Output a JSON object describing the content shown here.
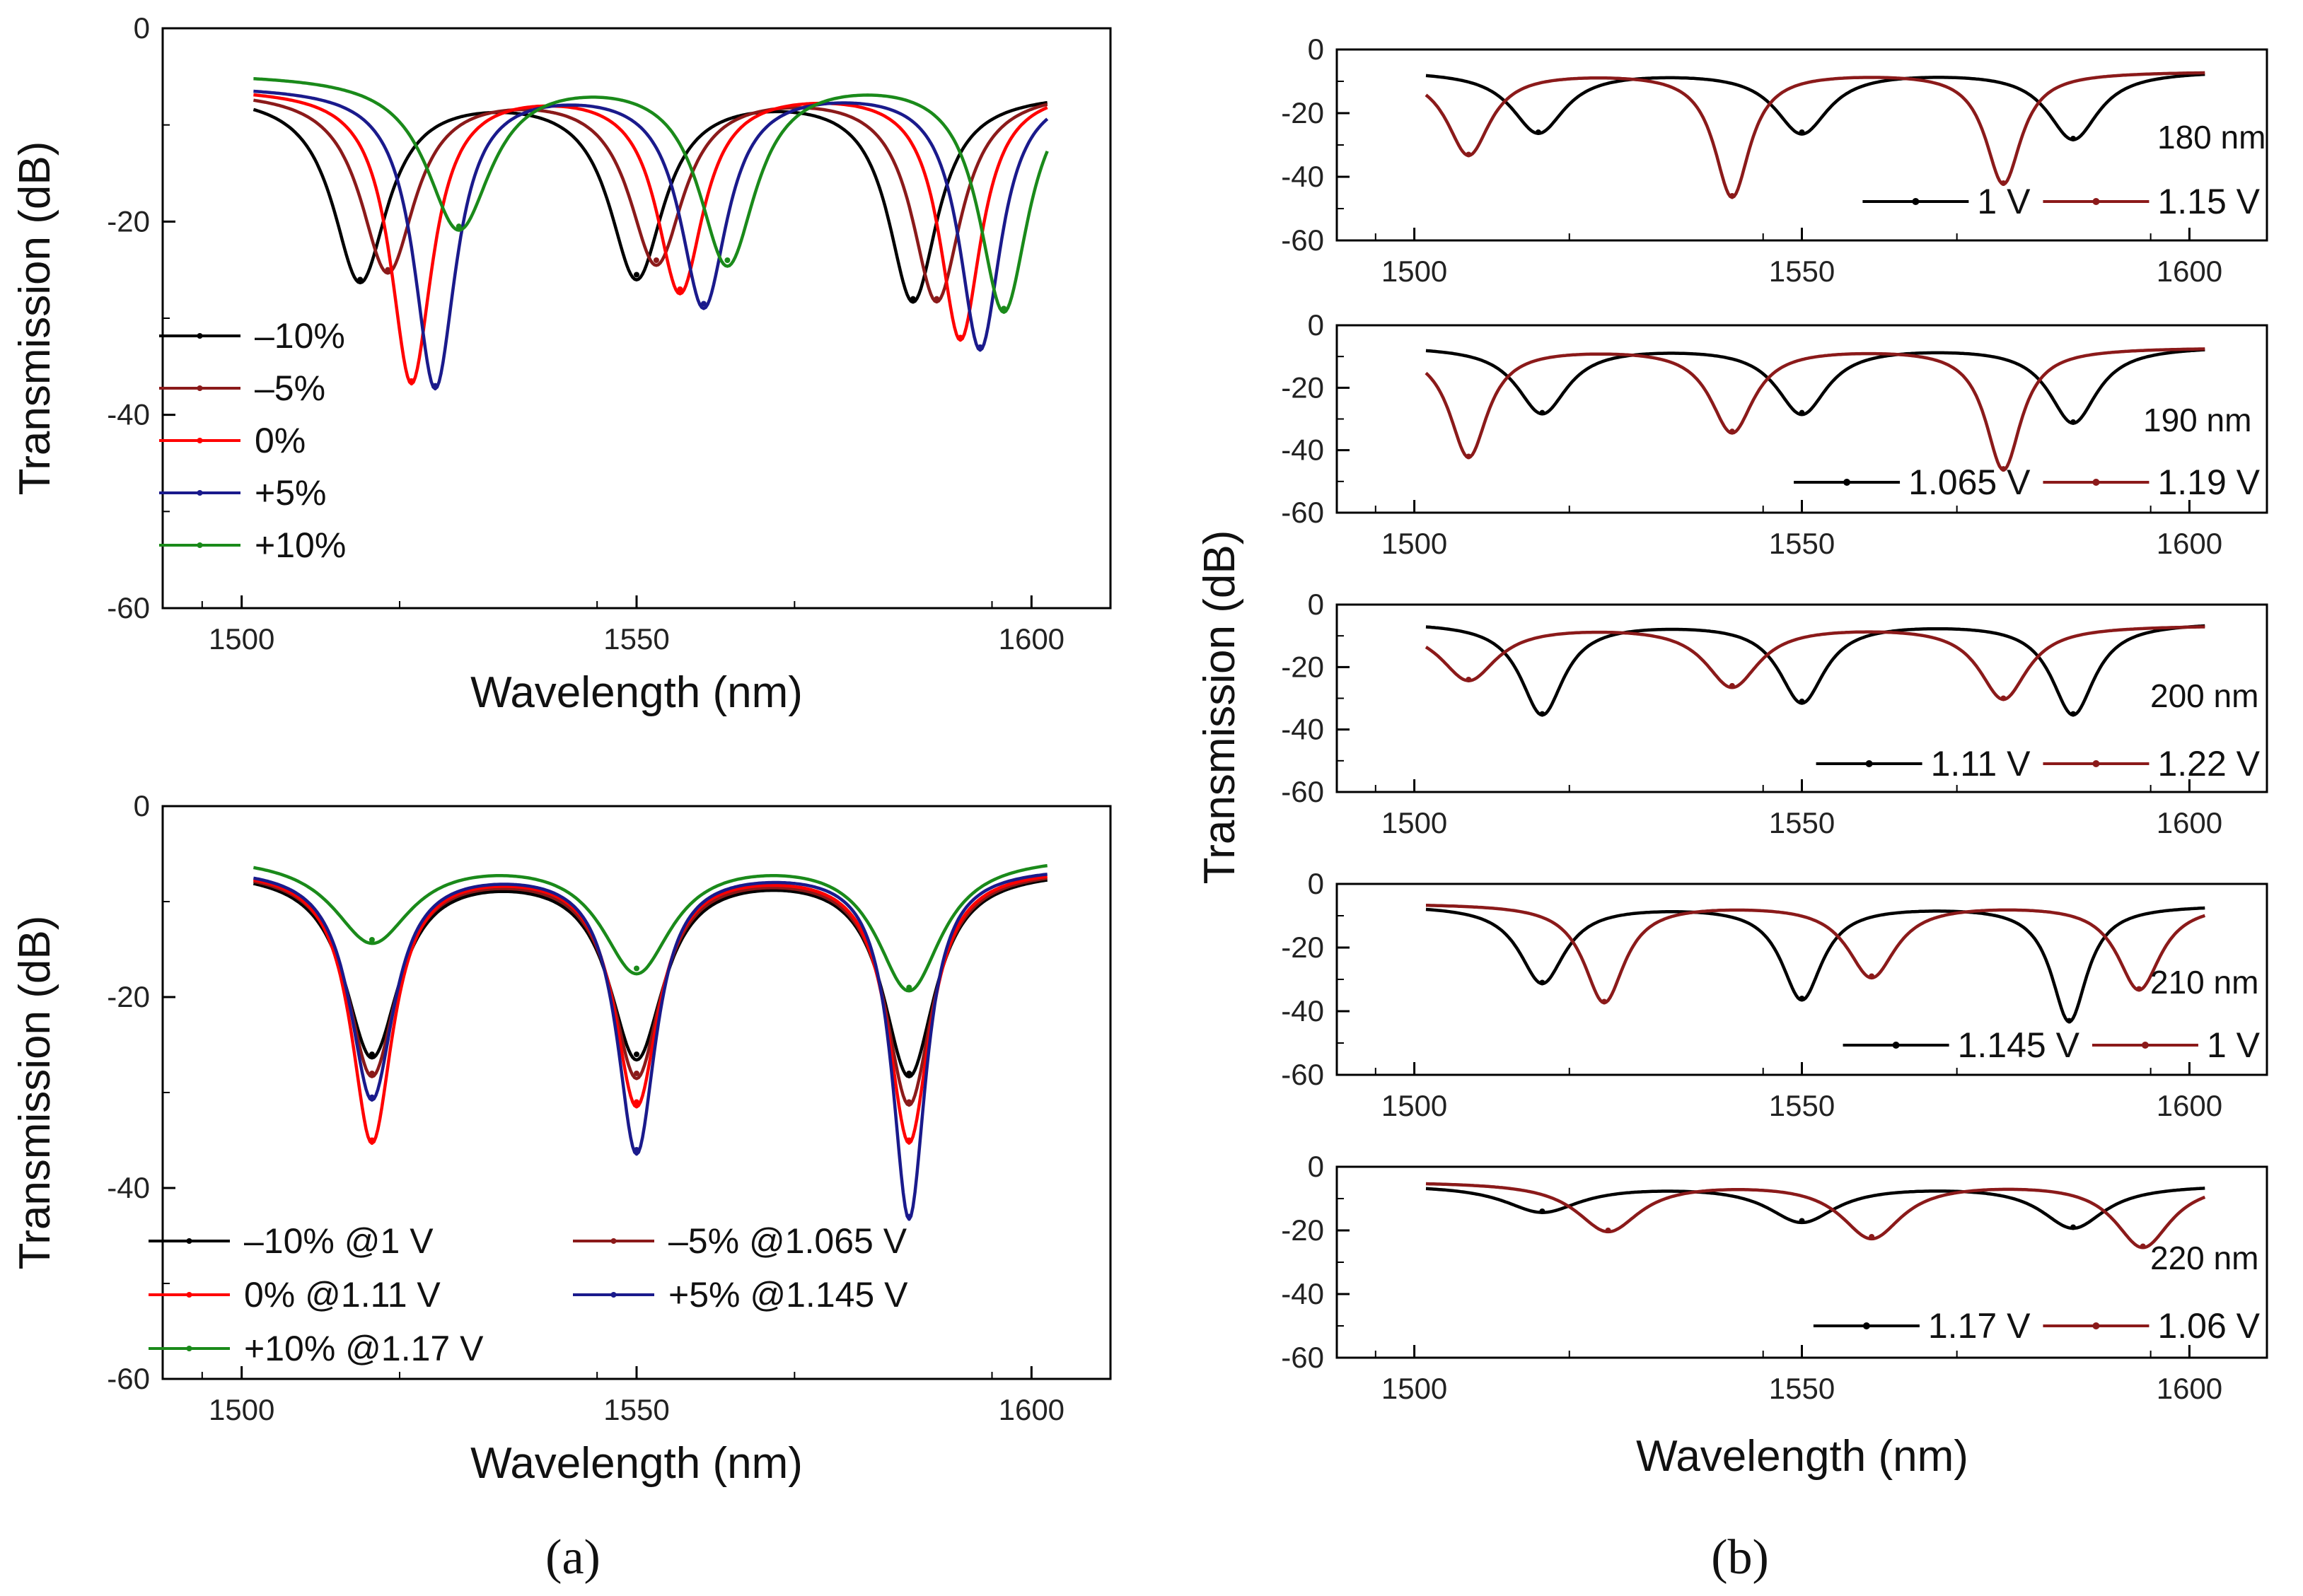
{
  "figure": {
    "panel_a_label": "(a)",
    "panel_b_label": "(b)",
    "panel_b_ylabel": "Transmission (dB)",
    "panel_b_xlabel": "Wavelength (nm)"
  },
  "chart_data": [
    {
      "id": "a_top",
      "type": "line",
      "xlabel": "Wavelength (nm)",
      "ylabel": "Transmission (dB)",
      "xlim": [
        1490,
        1610
      ],
      "ylim": [
        -60,
        0
      ],
      "xticks": [
        1500,
        1550,
        1600
      ],
      "yticks": [
        0,
        -20,
        -40,
        -60
      ],
      "legend_position": "left",
      "series": [
        {
          "name": "–10%",
          "color": "#000000",
          "dips": [
            {
              "x": 1515,
              "depth": -26,
              "width": 4.2
            },
            {
              "x": 1550,
              "depth": -25.5,
              "width": 4.2
            },
            {
              "x": 1585,
              "depth": -28,
              "width": 3.8
            }
          ],
          "baseline": -6.5
        },
        {
          "name": "–5%",
          "color": "#8b1a1a",
          "dips": [
            {
              "x": 1518.5,
              "depth": -25,
              "width": 4.2
            },
            {
              "x": 1552.5,
              "depth": -24,
              "width": 4.2
            },
            {
              "x": 1588,
              "depth": -28,
              "width": 3.8
            }
          ],
          "baseline": -6.2
        },
        {
          "name": "0%",
          "color": "#ff0000",
          "dips": [
            {
              "x": 1521.5,
              "depth": -36.5,
              "width": 3.2
            },
            {
              "x": 1555.5,
              "depth": -27,
              "width": 3.6
            },
            {
              "x": 1591,
              "depth": -32,
              "width": 3.2
            }
          ],
          "baseline": -6
        },
        {
          "name": "+5%",
          "color": "#1a1a8c",
          "dips": [
            {
              "x": 1524.5,
              "depth": -37,
              "width": 3.2
            },
            {
              "x": 1558.5,
              "depth": -28.5,
              "width": 3.6
            },
            {
              "x": 1593.5,
              "depth": -33,
              "width": 3.2
            }
          ],
          "baseline": -5.8
        },
        {
          "name": "+10%",
          "color": "#1a8a1a",
          "dips": [
            {
              "x": 1527.5,
              "depth": -20.5,
              "width": 5
            },
            {
              "x": 1561.5,
              "depth": -24,
              "width": 4.4
            },
            {
              "x": 1596.5,
              "depth": -29,
              "width": 3.8
            }
          ],
          "baseline": -4.5
        }
      ]
    },
    {
      "id": "a_bottom",
      "type": "line",
      "xlabel": "Wavelength (nm)",
      "ylabel": "Transmission (dB)",
      "xlim": [
        1490,
        1610
      ],
      "ylim": [
        -60,
        0
      ],
      "xticks": [
        1500,
        1550,
        1600
      ],
      "yticks": [
        0,
        -20,
        -40,
        -60
      ],
      "legend_position": "bottom",
      "series": [
        {
          "name": "–10% @1 V",
          "color": "#000000",
          "dips": [
            {
              "x": 1516.5,
              "depth": -26,
              "width": 4.2
            },
            {
              "x": 1550,
              "depth": -26,
              "width": 4.2
            },
            {
              "x": 1584.5,
              "depth": -28,
              "width": 4
            }
          ],
          "baseline": -6.5
        },
        {
          "name": "–5%  @1.065 V",
          "color": "#8b1a1a",
          "dips": [
            {
              "x": 1516.5,
              "depth": -28,
              "width": 3.8
            },
            {
              "x": 1550,
              "depth": -28,
              "width": 3.8
            },
            {
              "x": 1584.5,
              "depth": -31,
              "width": 3.6
            }
          ],
          "baseline": -6.4
        },
        {
          "name": "0%    @1.11 V",
          "color": "#ff0000",
          "dips": [
            {
              "x": 1516.5,
              "depth": -35,
              "width": 3.2
            },
            {
              "x": 1550,
              "depth": -31,
              "width": 3.4
            },
            {
              "x": 1584.5,
              "depth": -35,
              "width": 3.2
            }
          ],
          "baseline": -6.3
        },
        {
          "name": "+5%  @1.145 V",
          "color": "#1a1a8c",
          "dips": [
            {
              "x": 1516.5,
              "depth": -30.5,
              "width": 3.4
            },
            {
              "x": 1550,
              "depth": -36,
              "width": 3
            },
            {
              "x": 1584.5,
              "depth": -43,
              "width": 2.6
            }
          ],
          "baseline": -6.2
        },
        {
          "name": "+10% @1.17 V",
          "color": "#1a8a1a",
          "dips": [
            {
              "x": 1516.5,
              "depth": -14,
              "width": 6
            },
            {
              "x": 1550,
              "depth": -17,
              "width": 5.4
            },
            {
              "x": 1584.5,
              "depth": -19,
              "width": 5
            }
          ],
          "baseline": -5
        }
      ]
    },
    {
      "id": "b_180",
      "type": "line",
      "annotation": "180 nm",
      "xlim": [
        1490,
        1610
      ],
      "ylim": [
        -60,
        0
      ],
      "xticks": [
        1500,
        1550,
        1600
      ],
      "yticks": [
        0,
        -20,
        -40,
        -60
      ],
      "legend_position": "bottom-right",
      "series": [
        {
          "name": "1 V",
          "color": "#000000",
          "dips": [
            {
              "x": 1516,
              "depth": -26,
              "width": 4.2
            },
            {
              "x": 1550,
              "depth": -26,
              "width": 4.2
            },
            {
              "x": 1585,
              "depth": -28,
              "width": 4
            }
          ],
          "baseline": -6.5
        },
        {
          "name": "1.15 V",
          "color": "#8b1a1a",
          "dips": [
            {
              "x": 1507,
              "depth": -33,
              "width": 3.4
            },
            {
              "x": 1541,
              "depth": -46,
              "width": 2.8
            },
            {
              "x": 1576,
              "depth": -42,
              "width": 2.8
            }
          ],
          "baseline": -6.8
        }
      ]
    },
    {
      "id": "b_190",
      "type": "line",
      "annotation": "190 nm",
      "xlim": [
        1490,
        1610
      ],
      "ylim": [
        -60,
        0
      ],
      "xticks": [
        1500,
        1550,
        1600
      ],
      "yticks": [
        0,
        -20,
        -40,
        -60
      ],
      "legend_position": "bottom-right",
      "series": [
        {
          "name": "1.065 V",
          "color": "#000000",
          "dips": [
            {
              "x": 1516.5,
              "depth": -28,
              "width": 4
            },
            {
              "x": 1550,
              "depth": -28,
              "width": 4
            },
            {
              "x": 1585,
              "depth": -31,
              "width": 3.8
            }
          ],
          "baseline": -6.5
        },
        {
          "name": "1.19 V",
          "color": "#8b1a1a",
          "dips": [
            {
              "x": 1507,
              "depth": -42,
              "width": 3
            },
            {
              "x": 1541,
              "depth": -34,
              "width": 3.4
            },
            {
              "x": 1576,
              "depth": -46,
              "width": 2.8
            }
          ],
          "baseline": -7
        }
      ]
    },
    {
      "id": "b_200",
      "type": "line",
      "annotation": "200 nm",
      "xlim": [
        1490,
        1610
      ],
      "ylim": [
        -60,
        0
      ],
      "xticks": [
        1500,
        1550,
        1600
      ],
      "yticks": [
        0,
        -20,
        -40,
        -60
      ],
      "legend_position": "bottom-right",
      "series": [
        {
          "name": "1.11 V",
          "color": "#000000",
          "dips": [
            {
              "x": 1516.5,
              "depth": -35,
              "width": 3.4
            },
            {
              "x": 1550,
              "depth": -31,
              "width": 3.6
            },
            {
              "x": 1585,
              "depth": -35,
              "width": 3.4
            }
          ],
          "baseline": -5.5
        },
        {
          "name": "1.22 V",
          "color": "#8b1a1a",
          "dips": [
            {
              "x": 1507,
              "depth": -24,
              "width": 4.4
            },
            {
              "x": 1541,
              "depth": -26,
              "width": 4.2
            },
            {
              "x": 1576,
              "depth": -30,
              "width": 3.8
            }
          ],
          "baseline": -6.5
        }
      ]
    },
    {
      "id": "b_210",
      "type": "line",
      "annotation": "210 nm",
      "xlim": [
        1490,
        1610
      ],
      "ylim": [
        -60,
        0
      ],
      "xticks": [
        1500,
        1550,
        1600
      ],
      "yticks": [
        0,
        -20,
        -40,
        -60
      ],
      "legend_position": "bottom-right",
      "series": [
        {
          "name": "1.145 V",
          "color": "#000000",
          "dips": [
            {
              "x": 1516.5,
              "depth": -31,
              "width": 3.6
            },
            {
              "x": 1550,
              "depth": -36,
              "width": 3.2
            },
            {
              "x": 1584.5,
              "depth": -43,
              "width": 2.8
            }
          ],
          "baseline": -6.5
        },
        {
          "name": "1 V",
          "color": "#8b1a1a",
          "dips": [
            {
              "x": 1524.5,
              "depth": -37,
              "width": 3.2
            },
            {
              "x": 1559,
              "depth": -29,
              "width": 3.8
            },
            {
              "x": 1593.5,
              "depth": -33,
              "width": 3.4
            }
          ],
          "baseline": -6
        }
      ]
    },
    {
      "id": "b_220",
      "type": "line",
      "annotation": "220 nm",
      "xlim": [
        1490,
        1610
      ],
      "ylim": [
        -60,
        0
      ],
      "xticks": [
        1500,
        1550,
        1600
      ],
      "yticks": [
        0,
        -20,
        -40,
        -60
      ],
      "legend_position": "bottom-right",
      "series": [
        {
          "name": "1.17 V",
          "color": "#000000",
          "dips": [
            {
              "x": 1516.5,
              "depth": -14,
              "width": 6
            },
            {
              "x": 1550,
              "depth": -17,
              "width": 5.4
            },
            {
              "x": 1585,
              "depth": -19,
              "width": 5
            }
          ],
          "baseline": -5.5
        },
        {
          "name": "1.06 V",
          "color": "#8b1a1a",
          "dips": [
            {
              "x": 1525,
              "depth": -20,
              "width": 5
            },
            {
              "x": 1559,
              "depth": -22,
              "width": 4.8
            },
            {
              "x": 1594,
              "depth": -25,
              "width": 4.4
            }
          ],
          "baseline": -4.5
        }
      ]
    }
  ]
}
